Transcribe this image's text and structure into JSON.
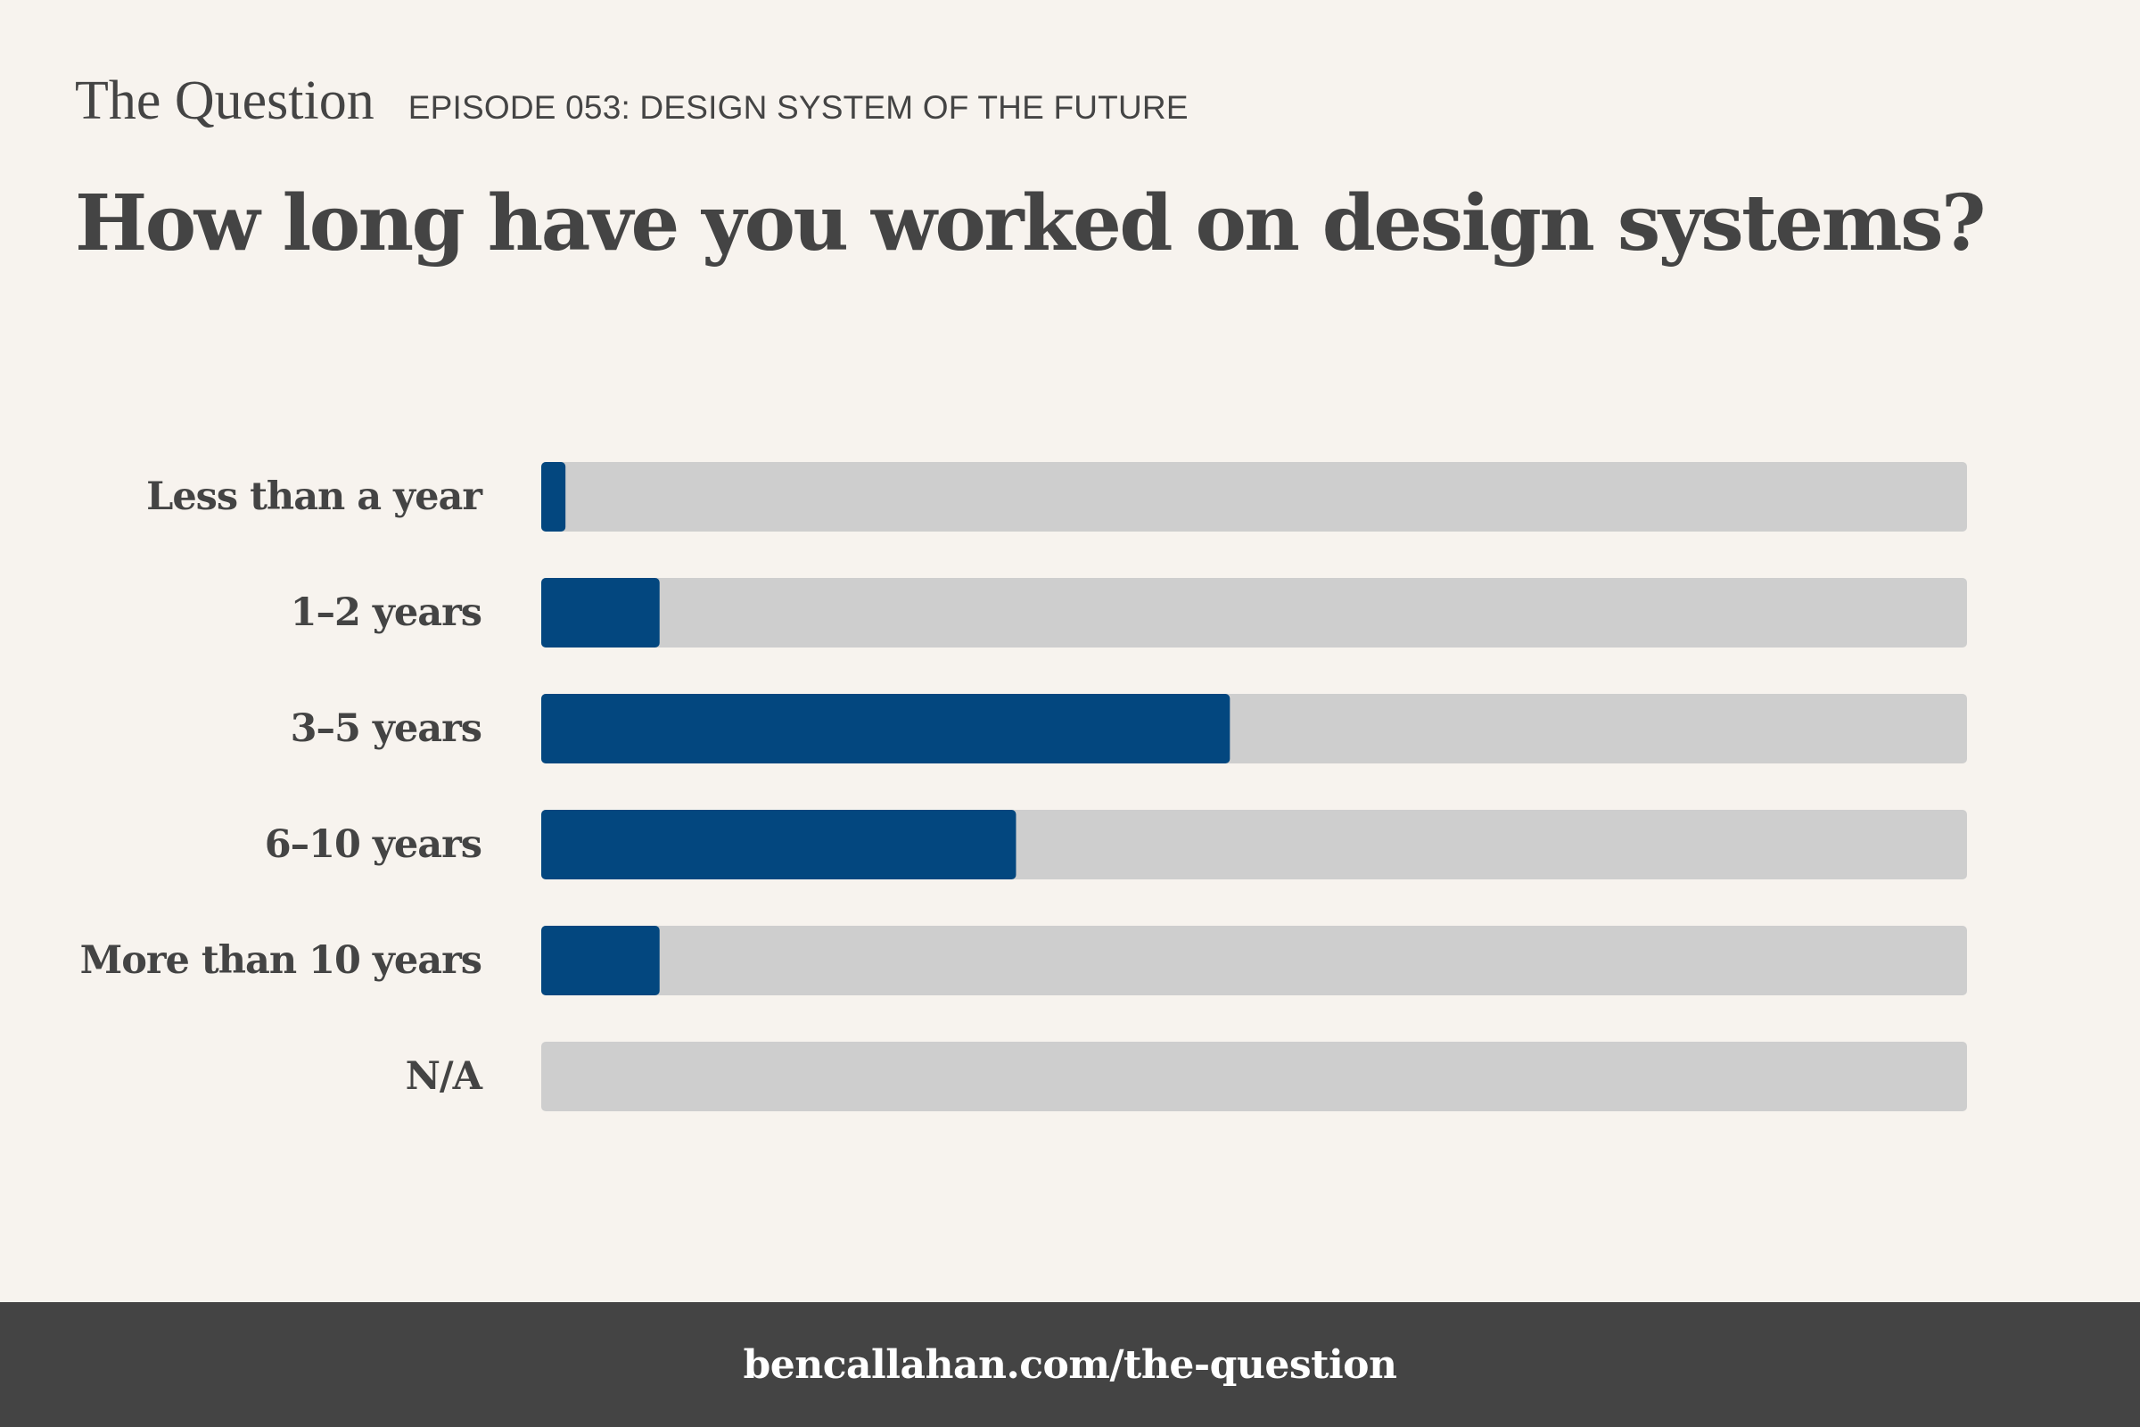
{
  "header": {
    "show_name": "The Question",
    "episode": "EPISODE 053: DESIGN SYSTEM OF THE FUTURE"
  },
  "footer": {
    "url": "bencallahan.com/the-question"
  },
  "colors": {
    "background": "#f7f3ee",
    "text": "#444444",
    "bar_fill": "#03477f",
    "bar_track": "#cecece",
    "footer_background": "#444444"
  },
  "chart_data": {
    "type": "bar",
    "orientation": "horizontal",
    "title": "How long have you worked on design systems?",
    "categories": [
      "Less than a year",
      "1–2 years",
      "3–5 years",
      "6–10 years",
      "More than 10 years",
      "N/A"
    ],
    "values": [
      1.7,
      8.3,
      48.3,
      33.3,
      8.3,
      0
    ],
    "xlim": [
      0,
      100
    ],
    "grid": false,
    "legend": "none"
  }
}
